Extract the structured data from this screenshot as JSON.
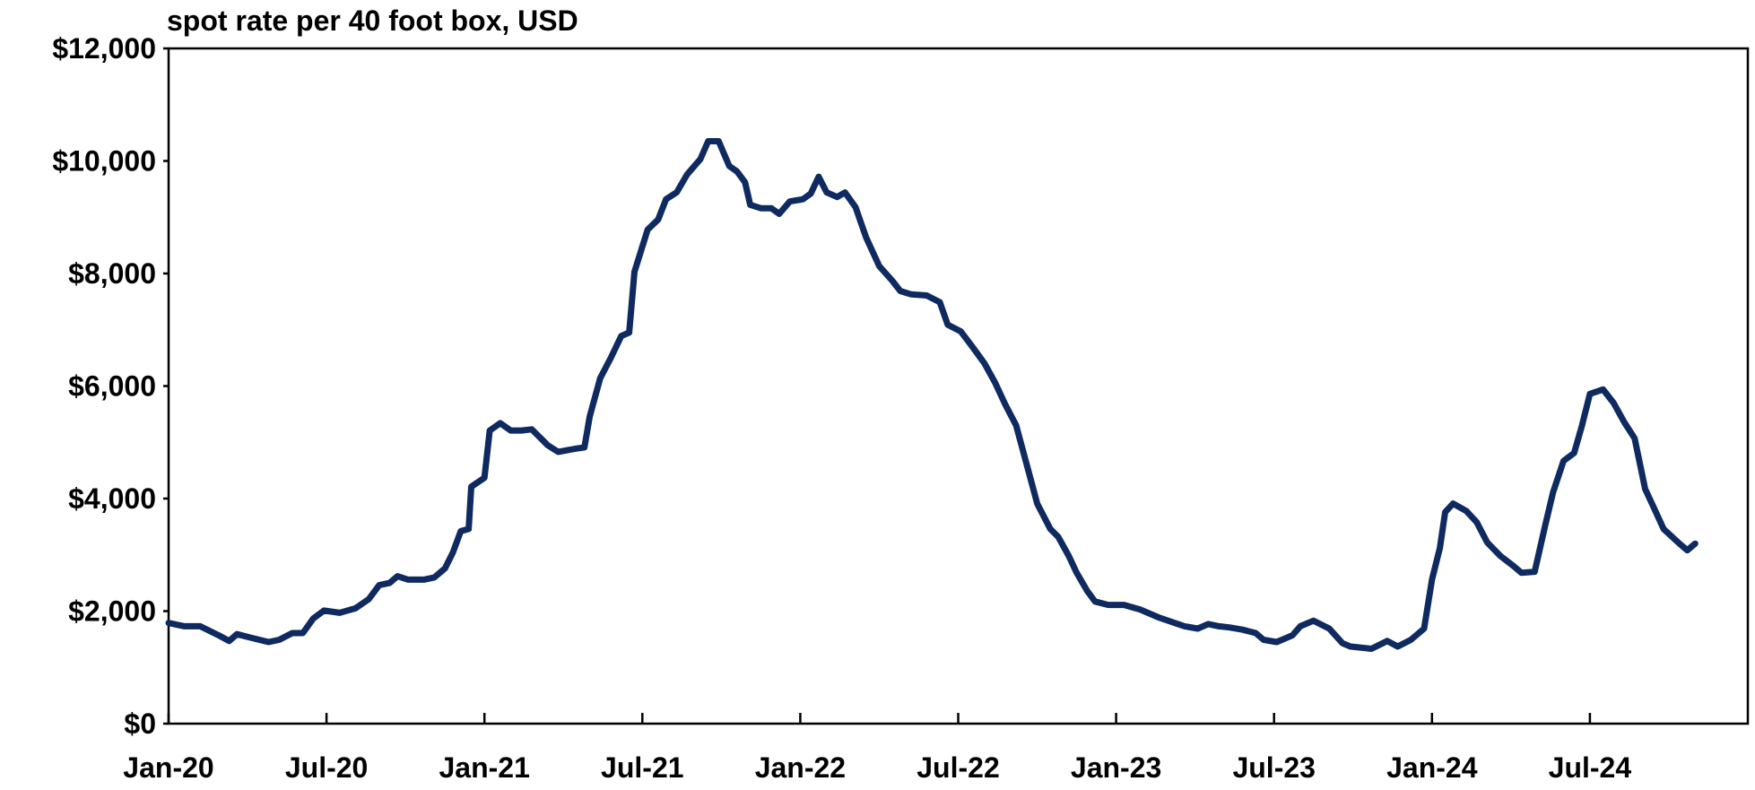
{
  "chart_data": {
    "type": "line",
    "title": "spot rate per 40 foot box, USD",
    "x": [
      0,
      0.6,
      1.2,
      1.9,
      2.3,
      2.6,
      3.1,
      3.8,
      4.2,
      4.7,
      5.1,
      5.5,
      5.9,
      6.5,
      7.1,
      7.6,
      8.0,
      8.4,
      8.7,
      9.1,
      9.7,
      10.1,
      10.5,
      10.8,
      11.1,
      11.4,
      11.5,
      12.0,
      12.2,
      12.6,
      13.0,
      13.4,
      13.8,
      14.4,
      14.8,
      15.5,
      15.8,
      16.0,
      16.4,
      16.8,
      17.2,
      17.5,
      17.7,
      18.2,
      18.6,
      18.9,
      19.3,
      19.7,
      20.2,
      20.5,
      20.9,
      21.3,
      21.6,
      21.9,
      22.1,
      22.5,
      22.9,
      23.2,
      23.6,
      24.1,
      24.4,
      24.7,
      25.0,
      25.4,
      25.7,
      26.1,
      26.5,
      27.0,
      27.5,
      27.8,
      28.2,
      28.8,
      29.3,
      29.6,
      30.1,
      30.6,
      31.0,
      31.4,
      31.8,
      32.2,
      32.6,
      33.0,
      33.5,
      33.8,
      34.2,
      34.5,
      34.9,
      35.2,
      35.7,
      36.3,
      36.9,
      37.6,
      38.1,
      38.6,
      39.1,
      39.5,
      39.9,
      40.3,
      40.8,
      41.3,
      41.6,
      42.1,
      42.7,
      43.0,
      43.5,
      44.1,
      44.6,
      44.9,
      45.7,
      46.3,
      46.7,
      47.2,
      47.7,
      48.0,
      48.3,
      48.5,
      48.8,
      49.3,
      49.7,
      50.1,
      50.6,
      51.1,
      51.4,
      51.9,
      52.3,
      52.6,
      53.0,
      53.4,
      53.7,
      54.0,
      54.5,
      54.9,
      55.3,
      55.7,
      56.1,
      56.4,
      56.8,
      57.4,
      57.7,
      58.0
    ],
    "series": [
      {
        "name": "spot rate",
        "color": "#0f2a60",
        "values": [
          1790,
          1730,
          1730,
          1570,
          1470,
          1590,
          1530,
          1450,
          1490,
          1610,
          1610,
          1870,
          2010,
          1970,
          2050,
          2210,
          2460,
          2500,
          2620,
          2560,
          2560,
          2600,
          2760,
          3040,
          3420,
          3460,
          4210,
          4370,
          5210,
          5340,
          5210,
          5210,
          5230,
          4950,
          4830,
          4890,
          4910,
          5460,
          6140,
          6500,
          6890,
          6950,
          8030,
          8780,
          8960,
          9320,
          9440,
          9760,
          10030,
          10350,
          10350,
          9910,
          9810,
          9620,
          9220,
          9160,
          9160,
          9060,
          9280,
          9320,
          9420,
          9720,
          9440,
          9360,
          9440,
          9180,
          8640,
          8130,
          7870,
          7690,
          7630,
          7610,
          7490,
          7090,
          6970,
          6660,
          6400,
          6060,
          5660,
          5300,
          4610,
          3910,
          3460,
          3320,
          2980,
          2680,
          2360,
          2170,
          2110,
          2110,
          2030,
          1890,
          1810,
          1730,
          1690,
          1770,
          1730,
          1710,
          1670,
          1610,
          1490,
          1450,
          1570,
          1730,
          1830,
          1690,
          1430,
          1370,
          1330,
          1470,
          1370,
          1490,
          1690,
          2560,
          3120,
          3760,
          3910,
          3780,
          3580,
          3220,
          2980,
          2800,
          2680,
          2700,
          3520,
          4110,
          4670,
          4810,
          5300,
          5860,
          5940,
          5700,
          5360,
          5070,
          4170,
          3870,
          3460,
          3200,
          3080,
          3200
        ]
      }
    ],
    "xlim": [
      0,
      60
    ],
    "xticks": [
      {
        "value": 0,
        "label": "Jan-20"
      },
      {
        "value": 6,
        "label": "Jul-20"
      },
      {
        "value": 12,
        "label": "Jan-21"
      },
      {
        "value": 18,
        "label": "Jul-21"
      },
      {
        "value": 24,
        "label": "Jan-22"
      },
      {
        "value": 30,
        "label": "Jul-22"
      },
      {
        "value": 36,
        "label": "Jan-23"
      },
      {
        "value": 42,
        "label": "Jul-23"
      },
      {
        "value": 48,
        "label": "Jan-24"
      },
      {
        "value": 54,
        "label": "Jul-24"
      }
    ],
    "ylim": [
      0,
      12000
    ],
    "yticks": [
      {
        "value": 0,
        "label": "$0"
      },
      {
        "value": 2000,
        "label": "$2,000"
      },
      {
        "value": 4000,
        "label": "$4,000"
      },
      {
        "value": 6000,
        "label": "$6,000"
      },
      {
        "value": 8000,
        "label": "$8,000"
      },
      {
        "value": 10000,
        "label": "$10,000"
      },
      {
        "value": 12000,
        "label": "$12,000"
      }
    ]
  }
}
